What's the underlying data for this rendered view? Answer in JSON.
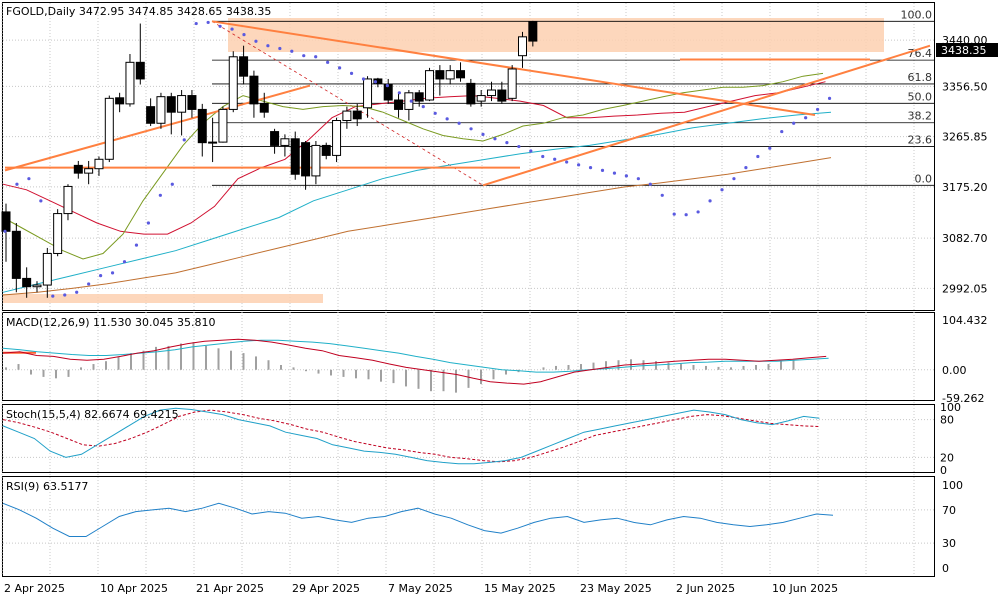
{
  "chart_data": [
    {
      "type": "candlestick",
      "panel": "price",
      "symbol": "FGOLD",
      "timeframe": "Daily",
      "header": "FGOLD,Daily  3472.95 3474.85 3428.65 3438.35",
      "ohlc_last": {
        "open": 3472.95,
        "high": 3474.85,
        "low": 3428.65,
        "close": 3438.35
      },
      "last_price_label": "3438.35",
      "price_axis_ticks": [
        "3440.00",
        "3356.50",
        "3265.85",
        "3175.20",
        "3082.70",
        "2992.05"
      ],
      "ylim": [
        2962,
        3480
      ],
      "x_date_labels": [
        "2 Apr 2025",
        "10 Apr 2025",
        "21 Apr 2025",
        "29 Apr 2025",
        "7 May 2025",
        "15 May 2025",
        "23 May 2025",
        "2 Jun 2025",
        "10 Jun 2025"
      ],
      "candles": [
        {
          "o": 3130,
          "h": 3145,
          "l": 3040,
          "c": 3095
        },
        {
          "o": 3095,
          "h": 3110,
          "l": 2985,
          "c": 3010
        },
        {
          "o": 3010,
          "h": 3030,
          "l": 2975,
          "c": 2995
        },
        {
          "o": 2995,
          "h": 3005,
          "l": 2985,
          "c": 2998
        },
        {
          "o": 2998,
          "h": 3065,
          "l": 2975,
          "c": 3055
        },
        {
          "o": 3055,
          "h": 3135,
          "l": 3050,
          "c": 3127
        },
        {
          "o": 3127,
          "h": 3180,
          "l": 3115,
          "c": 3176
        },
        {
          "o": 3214,
          "h": 3222,
          "l": 3190,
          "c": 3200
        },
        {
          "o": 3200,
          "h": 3222,
          "l": 3180,
          "c": 3208
        },
        {
          "o": 3208,
          "h": 3230,
          "l": 3195,
          "c": 3225
        },
        {
          "o": 3225,
          "h": 3340,
          "l": 3220,
          "c": 3335
        },
        {
          "o": 3336,
          "h": 3345,
          "l": 3310,
          "c": 3325
        },
        {
          "o": 3325,
          "h": 3415,
          "l": 3320,
          "c": 3400
        },
        {
          "o": 3400,
          "h": 3470,
          "l": 3360,
          "c": 3370
        },
        {
          "o": 3320,
          "h": 3335,
          "l": 3285,
          "c": 3290
        },
        {
          "o": 3290,
          "h": 3345,
          "l": 3280,
          "c": 3338
        },
        {
          "o": 3338,
          "h": 3345,
          "l": 3270,
          "c": 3310
        },
        {
          "o": 3310,
          "h": 3350,
          "l": 3268,
          "c": 3340
        },
        {
          "o": 3340,
          "h": 3350,
          "l": 3300,
          "c": 3315
        },
        {
          "o": 3315,
          "h": 3325,
          "l": 3230,
          "c": 3255
        },
        {
          "o": 3255,
          "h": 3300,
          "l": 3220,
          "c": 3256
        },
        {
          "o": 3256,
          "h": 3320,
          "l": 3255,
          "c": 3315
        },
        {
          "o": 3315,
          "h": 3420,
          "l": 3310,
          "c": 3410
        },
        {
          "o": 3410,
          "h": 3430,
          "l": 3360,
          "c": 3375
        },
        {
          "o": 3375,
          "h": 3385,
          "l": 3300,
          "c": 3325
        },
        {
          "o": 3325,
          "h": 3345,
          "l": 3300,
          "c": 3310
        },
        {
          "o": 3275,
          "h": 3280,
          "l": 3235,
          "c": 3250
        },
        {
          "o": 3250,
          "h": 3270,
          "l": 3230,
          "c": 3262
        },
        {
          "o": 3262,
          "h": 3275,
          "l": 3188,
          "c": 3198
        },
        {
          "o": 3255,
          "h": 3258,
          "l": 3170,
          "c": 3195
        },
        {
          "o": 3195,
          "h": 3258,
          "l": 3180,
          "c": 3250
        },
        {
          "o": 3250,
          "h": 3255,
          "l": 3225,
          "c": 3232
        },
        {
          "o": 3232,
          "h": 3300,
          "l": 3220,
          "c": 3295
        },
        {
          "o": 3295,
          "h": 3320,
          "l": 3280,
          "c": 3312
        },
        {
          "o": 3312,
          "h": 3325,
          "l": 3285,
          "c": 3298
        },
        {
          "o": 3318,
          "h": 3375,
          "l": 3300,
          "c": 3370
        },
        {
          "o": 3370,
          "h": 3372,
          "l": 3355,
          "c": 3362
        },
        {
          "o": 3360,
          "h": 3370,
          "l": 3325,
          "c": 3332
        },
        {
          "o": 3332,
          "h": 3345,
          "l": 3300,
          "c": 3315
        },
        {
          "o": 3315,
          "h": 3350,
          "l": 3295,
          "c": 3345
        },
        {
          "o": 3345,
          "h": 3350,
          "l": 3320,
          "c": 3330
        },
        {
          "o": 3332,
          "h": 3390,
          "l": 3330,
          "c": 3385
        },
        {
          "o": 3385,
          "h": 3395,
          "l": 3340,
          "c": 3370
        },
        {
          "o": 3370,
          "h": 3395,
          "l": 3360,
          "c": 3385
        },
        {
          "o": 3385,
          "h": 3400,
          "l": 3365,
          "c": 3372
        },
        {
          "o": 3362,
          "h": 3370,
          "l": 3320,
          "c": 3325
        },
        {
          "o": 3330,
          "h": 3350,
          "l": 3320,
          "c": 3340
        },
        {
          "o": 3340,
          "h": 3365,
          "l": 3330,
          "c": 3350
        },
        {
          "o": 3350,
          "h": 3365,
          "l": 3325,
          "c": 3330
        },
        {
          "o": 3335,
          "h": 3395,
          "l": 3330,
          "c": 3388
        },
        {
          "o": 3412,
          "h": 3455,
          "l": 3390,
          "c": 3446
        },
        {
          "o": 3472.95,
          "h": 3474.85,
          "l": 3428.65,
          "c": 3438.35
        }
      ],
      "sar_dots": [
        3095,
        3180,
        3190,
        3150,
        2978,
        2980,
        2985,
        3000,
        3015,
        3020,
        3040,
        3070,
        3110,
        3160,
        3180,
        3260,
        3470,
        3472,
        3465,
        3460,
        3450,
        3438,
        3430,
        3425,
        3420,
        3412,
        3410,
        3400,
        3390,
        3380,
        3370,
        3365,
        3358,
        3345,
        3330,
        3320,
        3308,
        3298,
        3290,
        3280,
        3270,
        3262,
        3255,
        3248,
        3240,
        3230,
        3225,
        3220,
        3215,
        3210,
        3205,
        3200,
        3195,
        3190,
        3180,
        3160,
        3126,
        3125,
        3130,
        3150,
        3170,
        3190,
        3210,
        3230,
        3245,
        3275,
        3290,
        3300,
        3315,
        3335
      ],
      "ma_fast_green": [
        3120,
        3100,
        3080,
        3060,
        3045,
        3055,
        3090,
        3150,
        3200,
        3250,
        3290,
        3320,
        3340,
        3330,
        3320,
        3315,
        3320,
        3322,
        3320,
        3310,
        3295,
        3280,
        3268,
        3262,
        3258,
        3270,
        3285,
        3290,
        3300,
        3305,
        3315,
        3322,
        3330,
        3338,
        3345,
        3350,
        3355,
        3355,
        3358,
        3365,
        3375,
        3380
      ],
      "ma_mid_red": [
        3180,
        3170,
        3150,
        3130,
        3110,
        3095,
        3090,
        3090,
        3110,
        3140,
        3190,
        3210,
        3225,
        3260,
        3300,
        3320,
        3325,
        3330,
        3335,
        3338,
        3340,
        3335,
        3330,
        3322,
        3300,
        3300,
        3303,
        3305,
        3308,
        3310,
        3320,
        3330,
        3340,
        3345,
        3355,
        3365
      ],
      "ma_slow_cyan": [
        2985,
        3000,
        3015,
        3030,
        3045,
        3060,
        3080,
        3100,
        3120,
        3150,
        3170,
        3190,
        3205,
        3215,
        3225,
        3235,
        3243,
        3250,
        3260,
        3270,
        3282,
        3290,
        3298,
        3305,
        3310
      ],
      "ma_long_brown": [
        2980,
        2985,
        2992,
        3000,
        3010,
        3020,
        3035,
        3050,
        3065,
        3080,
        3095,
        3105,
        3115,
        3125,
        3135,
        3145,
        3155,
        3165,
        3175,
        3182,
        3190,
        3198,
        3208,
        3218,
        3228
      ],
      "fib_levels": [
        {
          "label": "100.0",
          "value": 3474
        },
        {
          "label": "76.4",
          "value": 3404
        },
        {
          "label": "61.8",
          "value": 3361
        },
        {
          "label": "50.0",
          "value": 3326
        },
        {
          "label": "38.2",
          "value": 3291
        },
        {
          "label": "23.6",
          "value": 3248
        },
        {
          "label": "0.0",
          "value": 3178
        }
      ],
      "colors": {
        "bull": "#ffffff",
        "bear": "#000000",
        "sar": "#5a5ae0",
        "ma_fast": "#7a9a20",
        "ma_mid": "#d01030",
        "ma_slow": "#20b0c8",
        "ma_long": "#c07030",
        "trend": "#ff8040",
        "zone": "#fdd0b0",
        "fib": "#000000"
      }
    },
    {
      "type": "macd",
      "panel": "macd",
      "header": "MACD(12,26,9) 11.530 30.045 35.810",
      "params": "12,26,9",
      "values_shown": [
        11.53,
        30.045,
        35.81
      ],
      "axis_ticks": [
        "104.432",
        "0.00",
        "-59.262"
      ],
      "ylim": [
        -59.262,
        104.432
      ],
      "histogram": [
        5,
        12,
        -10,
        -15,
        -18,
        -15,
        5,
        12,
        18,
        28,
        35,
        40,
        48,
        50,
        55,
        58,
        50,
        45,
        40,
        35,
        28,
        20,
        10,
        5,
        -3,
        -8,
        -12,
        -15,
        -18,
        -20,
        -25,
        -28,
        -35,
        -40,
        -45,
        -45,
        -48,
        -38,
        -30,
        -20,
        -10,
        -5,
        0,
        5,
        8,
        10,
        12,
        15,
        18,
        20,
        22,
        20,
        18,
        15,
        12,
        10,
        8,
        6,
        5,
        8,
        10,
        12,
        18,
        20
      ],
      "macd_line": [
        35,
        38,
        30,
        28,
        22,
        20,
        22,
        28,
        35,
        40,
        48,
        55,
        60,
        62,
        64,
        62,
        58,
        52,
        45,
        40,
        30,
        25,
        20,
        12,
        5,
        0,
        -5,
        -10,
        -18,
        -25,
        -28,
        -30,
        -25,
        -15,
        -5,
        0,
        5,
        10,
        12,
        15,
        18,
        20,
        22,
        22,
        20,
        18,
        20,
        22,
        25,
        28
      ],
      "signal_line": [
        45,
        42,
        38,
        35,
        32,
        30,
        30,
        32,
        35,
        38,
        42,
        48,
        52,
        56,
        60,
        62,
        62,
        60,
        58,
        55,
        50,
        45,
        40,
        35,
        28,
        22,
        15,
        10,
        5,
        0,
        -2,
        -5,
        -5,
        -3,
        0,
        2,
        5,
        8,
        10,
        12,
        15,
        16,
        18,
        18,
        18,
        18,
        20,
        22,
        24
      ],
      "colors": {
        "macd": "#c00020",
        "signal": "#20b0c8",
        "hist": "#a0a0a0"
      }
    },
    {
      "type": "stochastic",
      "panel": "stoch",
      "header": "Stoch(15,5,4) 82.6674 69.4215",
      "values_shown": [
        82.6674,
        69.4215
      ],
      "axis_ticks": [
        "100",
        "80",
        "20",
        "0"
      ],
      "ylim": [
        0,
        100
      ],
      "k_line": [
        70,
        60,
        50,
        30,
        20,
        25,
        40,
        55,
        70,
        85,
        95,
        98,
        96,
        92,
        88,
        80,
        75,
        70,
        60,
        55,
        50,
        40,
        35,
        30,
        28,
        25,
        20,
        15,
        12,
        10,
        10,
        12,
        15,
        20,
        30,
        40,
        50,
        60,
        65,
        70,
        75,
        80,
        85,
        90,
        95,
        92,
        88,
        80,
        75,
        72,
        78,
        85,
        82
      ],
      "d_line": [
        80,
        75,
        68,
        60,
        50,
        40,
        38,
        42,
        50,
        60,
        72,
        85,
        92,
        95,
        92,
        88,
        82,
        78,
        72,
        65,
        60,
        52,
        45,
        40,
        35,
        32,
        28,
        25,
        20,
        18,
        15,
        13,
        15,
        20,
        28,
        36,
        45,
        55,
        60,
        65,
        70,
        75,
        80,
        85,
        88,
        86,
        82,
        78,
        74,
        72,
        70,
        69
      ],
      "colors": {
        "k": "#20a0c8",
        "d": "#c00020"
      }
    },
    {
      "type": "rsi",
      "panel": "rsi",
      "header": "RSI(9) 63.5177",
      "value_shown": 63.5177,
      "axis_ticks": [
        "100",
        "70",
        "30",
        "0"
      ],
      "ylim": [
        0,
        100
      ],
      "line": [
        78,
        70,
        60,
        48,
        38,
        38,
        50,
        62,
        68,
        70,
        72,
        68,
        72,
        78,
        72,
        65,
        68,
        66,
        60,
        62,
        58,
        55,
        60,
        62,
        68,
        72,
        65,
        60,
        52,
        45,
        42,
        48,
        55,
        60,
        62,
        55,
        58,
        60,
        55,
        52,
        58,
        62,
        60,
        55,
        52,
        50,
        52,
        55,
        60,
        65,
        63.5
      ],
      "colors": {
        "line": "#2080c8"
      }
    }
  ]
}
